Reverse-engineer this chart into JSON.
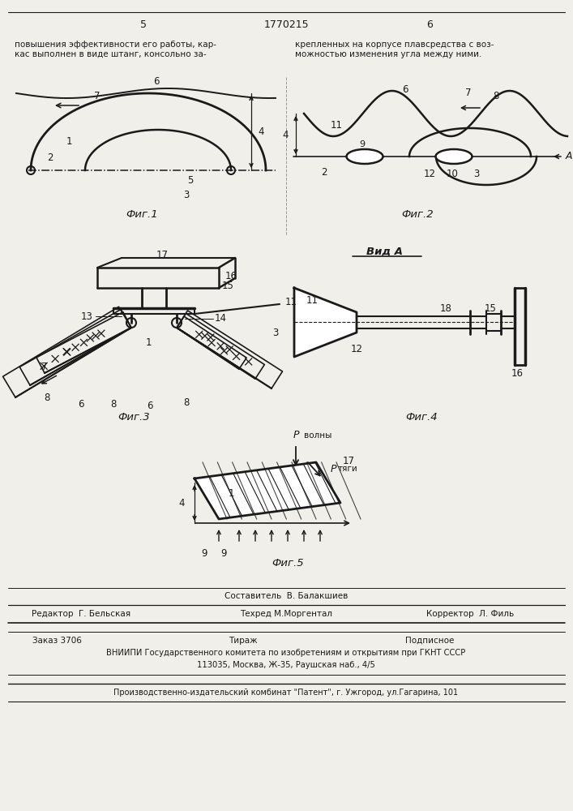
{
  "page_number_left": "5",
  "page_number_center": "1770215",
  "page_number_right": "6",
  "text_left": "повышения эффективности его работы, кар-\nкас выполнен в виде штанг, консольно за-",
  "text_right": "крепленных на корпусе плавсредства с воз-\nможностью изменения угла между ними.",
  "fig1_label": "Фиг.1",
  "fig2_label": "Фиг.2",
  "fig3_label": "Фиг.3",
  "fig4_label": "Фиг.4",
  "fig5_label": "Фиг.5",
  "vid_a_label": "Вид А",
  "footer_sostavitel": "Составитель  В. Балакшиев",
  "footer_editor": "Редактор  Г. Бельская",
  "footer_tech": "Техред М.Моргентал",
  "footer_corrector": "Корректор  Л. Филь",
  "footer_order": "Заказ 3706",
  "footer_tirazh": "Тираж",
  "footer_podpisnoe": "Подписное",
  "footer_vniiipi": "ВНИИПИ Государственного комитета по изобретениям и открытиям при ГКНТ СССР",
  "footer_address": "113035, Москва, Ж-35, Раушская наб., 4/5",
  "footer_publisher": "Производственно-издательский комбинат \"Патент\", г. Ужгород, ул.Гагарина, 101",
  "bg_color": "#f0efea",
  "line_color": "#1a1a1a"
}
